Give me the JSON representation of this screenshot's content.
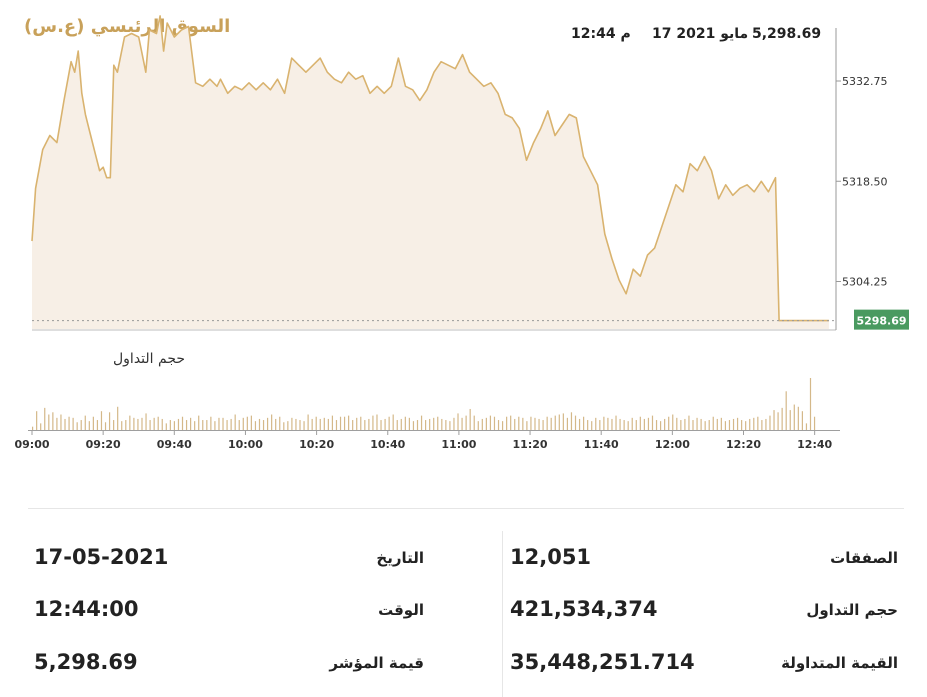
{
  "header": {
    "title": "السوق الرئيسي (ع.س)",
    "time": "12:44 م",
    "date": "17 مايو 2021",
    "value": "5,298.69"
  },
  "chart_data": {
    "type": "area",
    "price": {
      "y_ticks": [
        "5332.75",
        "5318.50",
        "5304.25"
      ],
      "current_label": "5298.69",
      "ylim": [
        5297.5,
        5340
      ],
      "points": [
        [
          "09:00",
          5310.0
        ],
        [
          "09:01",
          5317.5
        ],
        [
          "09:03",
          5323.0
        ],
        [
          "09:05",
          5325.0
        ],
        [
          "09:07",
          5324.0
        ],
        [
          "09:09",
          5330.0
        ],
        [
          "09:11",
          5335.5
        ],
        [
          "09:12",
          5334.0
        ],
        [
          "09:13",
          5337.0
        ],
        [
          "09:14",
          5331.0
        ],
        [
          "09:15",
          5328.0
        ],
        [
          "09:16",
          5326.0
        ],
        [
          "09:18",
          5322.0
        ],
        [
          "09:19",
          5320.0
        ],
        [
          "09:20",
          5320.5
        ],
        [
          "09:21",
          5319.0
        ],
        [
          "09:22",
          5319.0
        ],
        [
          "09:23",
          5335.0
        ],
        [
          "09:24",
          5334.0
        ],
        [
          "09:26",
          5339.0
        ],
        [
          "09:28",
          5339.5
        ],
        [
          "09:30",
          5339.0
        ],
        [
          "09:32",
          5334.0
        ],
        [
          "09:33",
          5340.0
        ],
        [
          "09:35",
          5339.5
        ],
        [
          "09:36",
          5342.0
        ],
        [
          "09:37",
          5337.0
        ],
        [
          "09:38",
          5341.0
        ],
        [
          "09:40",
          5339.0
        ],
        [
          "09:42",
          5340.0
        ],
        [
          "09:44",
          5340.5
        ],
        [
          "09:46",
          5332.5
        ],
        [
          "09:48",
          5332.0
        ],
        [
          "09:50",
          5333.0
        ],
        [
          "09:52",
          5332.0
        ],
        [
          "09:53",
          5333.0
        ],
        [
          "09:55",
          5331.0
        ],
        [
          "09:57",
          5332.0
        ],
        [
          "09:59",
          5331.5
        ],
        [
          "10:01",
          5332.5
        ],
        [
          "10:03",
          5331.5
        ],
        [
          "10:05",
          5332.5
        ],
        [
          "10:07",
          5331.5
        ],
        [
          "10:09",
          5333.0
        ],
        [
          "10:11",
          5331.0
        ],
        [
          "10:13",
          5336.0
        ],
        [
          "10:15",
          5335.0
        ],
        [
          "10:17",
          5334.0
        ],
        [
          "10:19",
          5335.0
        ],
        [
          "10:21",
          5336.0
        ],
        [
          "10:23",
          5334.0
        ],
        [
          "10:25",
          5333.0
        ],
        [
          "10:27",
          5332.5
        ],
        [
          "10:29",
          5334.0
        ],
        [
          "10:31",
          5333.0
        ],
        [
          "10:33",
          5333.5
        ],
        [
          "10:35",
          5331.0
        ],
        [
          "10:37",
          5332.0
        ],
        [
          "10:39",
          5331.0
        ],
        [
          "10:41",
          5332.0
        ],
        [
          "10:43",
          5336.0
        ],
        [
          "10:45",
          5332.0
        ],
        [
          "10:47",
          5331.5
        ],
        [
          "10:49",
          5330.0
        ],
        [
          "10:51",
          5331.5
        ],
        [
          "10:53",
          5334.0
        ],
        [
          "10:55",
          5335.5
        ],
        [
          "10:57",
          5335.0
        ],
        [
          "10:59",
          5334.5
        ],
        [
          "11:01",
          5336.5
        ],
        [
          "11:03",
          5334.0
        ],
        [
          "11:05",
          5333.0
        ],
        [
          "11:07",
          5332.0
        ],
        [
          "11:09",
          5332.5
        ],
        [
          "11:11",
          5331.0
        ],
        [
          "11:13",
          5328.0
        ],
        [
          "11:15",
          5327.5
        ],
        [
          "11:17",
          5326.0
        ],
        [
          "11:19",
          5321.5
        ],
        [
          "11:21",
          5324.0
        ],
        [
          "11:23",
          5326.0
        ],
        [
          "11:25",
          5328.5
        ],
        [
          "11:27",
          5325.0
        ],
        [
          "11:29",
          5326.5
        ],
        [
          "11:31",
          5328.0
        ],
        [
          "11:33",
          5327.5
        ],
        [
          "11:35",
          5322.0
        ],
        [
          "11:37",
          5320.0
        ],
        [
          "11:39",
          5318.0
        ],
        [
          "11:41",
          5311.0
        ],
        [
          "11:43",
          5307.5
        ],
        [
          "11:45",
          5304.5
        ],
        [
          "11:47",
          5302.5
        ],
        [
          "11:49",
          5306.0
        ],
        [
          "11:51",
          5305.0
        ],
        [
          "11:53",
          5308.0
        ],
        [
          "11:55",
          5309.0
        ],
        [
          "11:57",
          5312.0
        ],
        [
          "11:59",
          5315.0
        ],
        [
          "12:01",
          5318.0
        ],
        [
          "12:03",
          5317.0
        ],
        [
          "12:05",
          5321.0
        ],
        [
          "12:07",
          5320.0
        ],
        [
          "12:09",
          5322.0
        ],
        [
          "12:11",
          5320.0
        ],
        [
          "12:13",
          5316.0
        ],
        [
          "12:15",
          5318.0
        ],
        [
          "12:17",
          5316.5
        ],
        [
          "12:19",
          5317.5
        ],
        [
          "12:21",
          5318.0
        ],
        [
          "12:23",
          5317.0
        ],
        [
          "12:25",
          5318.5
        ],
        [
          "12:27",
          5317.0
        ],
        [
          "12:29",
          5319.0
        ],
        [
          "12:30",
          5298.7
        ],
        [
          "12:44",
          5298.69
        ]
      ]
    },
    "volume": {
      "label": "حجم التداول",
      "bars": [
        3,
        17,
        6,
        20,
        14,
        16,
        11,
        14,
        10,
        12,
        11,
        7,
        9,
        13,
        8,
        12,
        9,
        17,
        7,
        16,
        9,
        21,
        8,
        9,
        13,
        11,
        10,
        11,
        15,
        9,
        11,
        12,
        10,
        6,
        9,
        8,
        10,
        12,
        9,
        11,
        8,
        13,
        9,
        9,
        12,
        8,
        11,
        11,
        9,
        10,
        14,
        9,
        11,
        12,
        13,
        8,
        10,
        9,
        11,
        14,
        10,
        12,
        7,
        8,
        11,
        10,
        9,
        8,
        14,
        10,
        12,
        10,
        11,
        10,
        13,
        9,
        12,
        12,
        13,
        9,
        11,
        12,
        9,
        10,
        13,
        14,
        9,
        10,
        12,
        14,
        9,
        10,
        12,
        11,
        8,
        9,
        13,
        9,
        10,
        11,
        12,
        10,
        9,
        8,
        11,
        15,
        11,
        13,
        19,
        13,
        8,
        10,
        11,
        13,
        12,
        9,
        8,
        12,
        13,
        10,
        12,
        11,
        8,
        12,
        11,
        10,
        9,
        12,
        11,
        13,
        14,
        15,
        11,
        16,
        13,
        10,
        12,
        9,
        8,
        11,
        9,
        12,
        11,
        10,
        13,
        10,
        9,
        8,
        11,
        9,
        12,
        10,
        11,
        13,
        9,
        8,
        10,
        12,
        14,
        11,
        9,
        10,
        13,
        9,
        11,
        10,
        8,
        9,
        12,
        10,
        11,
        8,
        9,
        10,
        11,
        9,
        8,
        10,
        11,
        12,
        9,
        10,
        13,
        18,
        16,
        20,
        35,
        18,
        23,
        21,
        17,
        6,
        47,
        12
      ]
    },
    "x_ticks": [
      "09:00",
      "09:20",
      "09:40",
      "10:00",
      "10:20",
      "10:40",
      "11:00",
      "11:20",
      "11:40",
      "12:00",
      "12:20",
      "12:40"
    ],
    "colors": {
      "line": "#d9b36f",
      "fill": "#f7efe6",
      "bar": "#d4b889",
      "last_label_bg": "#4a9a60",
      "title": "#c8a15a"
    }
  },
  "stats": {
    "left": [
      {
        "label": "التاريخ",
        "value": "17-05-2021"
      },
      {
        "label": "الوقت",
        "value": "12:44:00"
      },
      {
        "label": "قيمة المؤشر",
        "value": "5,298.69"
      }
    ],
    "right": [
      {
        "label": "الصفقات",
        "value": "12,051"
      },
      {
        "label": "حجم التداول",
        "value": "421,534,374"
      },
      {
        "label": "القيمة المتداولة",
        "value": "35,448,251.714"
      }
    ]
  }
}
